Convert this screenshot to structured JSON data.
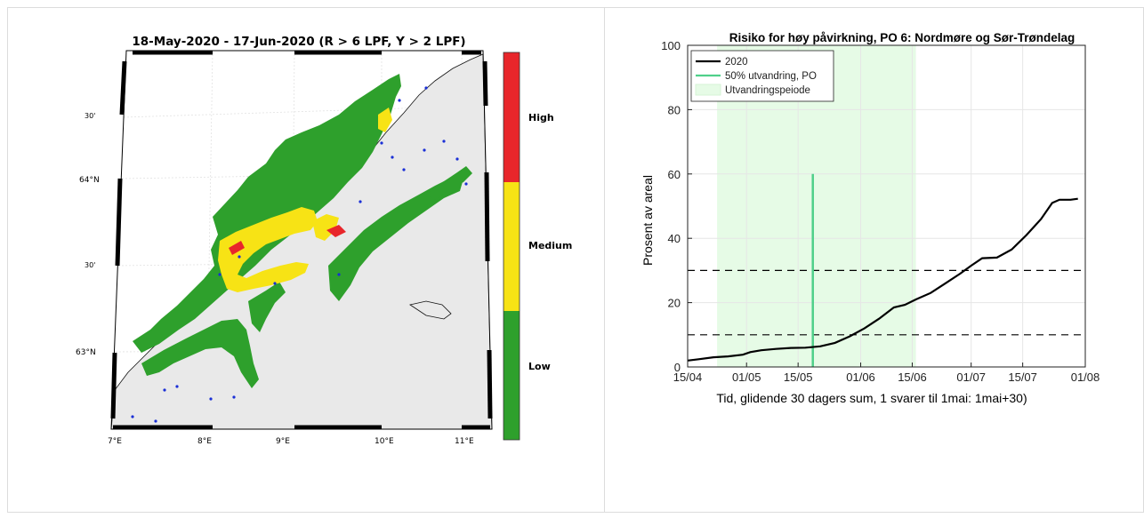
{
  "chart_data": [
    {
      "type": "heatmap",
      "title": "18-May-2020  - 17-Jun-2020  (R > 6 LPF, Y > 2 LPF)",
      "lat_ticks": [
        "30'",
        "64°N",
        "30'",
        "63°N"
      ],
      "lon_ticks": [
        "7°E",
        "8°E",
        "9°E",
        "10°E",
        "11°E"
      ],
      "colorbar": {
        "labels": [
          "High",
          "Medium",
          "Low"
        ],
        "colors": [
          "#e8262b",
          "#f7e315",
          "#2ea02c"
        ]
      },
      "colors": {
        "land": "#e9e9e9",
        "coast": "#111111",
        "farm": "#1a2fd6"
      }
    },
    {
      "type": "line",
      "title": "Risiko for høy påvirkning, PO 6: Nordmøre og Sør-Trøndelag",
      "xlabel": "Tid, glidende 30 dagers sum, 1 svarer til 1mai: 1mai+30)",
      "ylabel": "Prosent av areal",
      "xlim": [
        "2020-04-15",
        "2020-08-01"
      ],
      "ylim": [
        0,
        100
      ],
      "x_ticks": [
        "15/04",
        "01/05",
        "15/05",
        "01/06",
        "15/06",
        "01/07",
        "15/07",
        "01/08"
      ],
      "y_ticks": [
        0,
        20,
        40,
        60,
        80,
        100
      ],
      "grid": true,
      "legend_position": "top-left",
      "series": [
        {
          "name": "2020",
          "color": "#000000",
          "points": [
            [
              "2020-04-15",
              2.0
            ],
            [
              "2020-04-18",
              2.4
            ],
            [
              "2020-04-22",
              3.0
            ],
            [
              "2020-04-26",
              3.3
            ],
            [
              "2020-04-30",
              3.8
            ],
            [
              "2020-05-02",
              4.6
            ],
            [
              "2020-05-05",
              5.2
            ],
            [
              "2020-05-09",
              5.6
            ],
            [
              "2020-05-13",
              5.9
            ],
            [
              "2020-05-17",
              6.0
            ],
            [
              "2020-05-21",
              6.4
            ],
            [
              "2020-05-25",
              7.5
            ],
            [
              "2020-05-29",
              9.5
            ],
            [
              "2020-06-02",
              12.0
            ],
            [
              "2020-06-06",
              15.0
            ],
            [
              "2020-06-10",
              18.5
            ],
            [
              "2020-06-13",
              19.3
            ],
            [
              "2020-06-16",
              21.0
            ],
            [
              "2020-06-20",
              23.0
            ],
            [
              "2020-06-24",
              26.0
            ],
            [
              "2020-06-28",
              29.0
            ],
            [
              "2020-07-01",
              31.5
            ],
            [
              "2020-07-04",
              33.8
            ],
            [
              "2020-07-08",
              34.0
            ],
            [
              "2020-07-12",
              36.5
            ],
            [
              "2020-07-16",
              41.0
            ],
            [
              "2020-07-20",
              46.0
            ],
            [
              "2020-07-23",
              51.0
            ],
            [
              "2020-07-25",
              52.0
            ],
            [
              "2020-07-28",
              52.0
            ],
            [
              "2020-07-30",
              52.3
            ]
          ]
        },
        {
          "name": "50% utvandring, PO",
          "color": "#4fd08a",
          "points": [
            [
              "2020-05-19",
              0
            ],
            [
              "2020-05-19",
              60
            ]
          ]
        },
        {
          "name": "Utvandringspeiode",
          "color": "#e6fbe6",
          "range": [
            "2020-04-23",
            "2020-06-16"
          ]
        }
      ],
      "threshold_lines": [
        10,
        30
      ]
    }
  ]
}
